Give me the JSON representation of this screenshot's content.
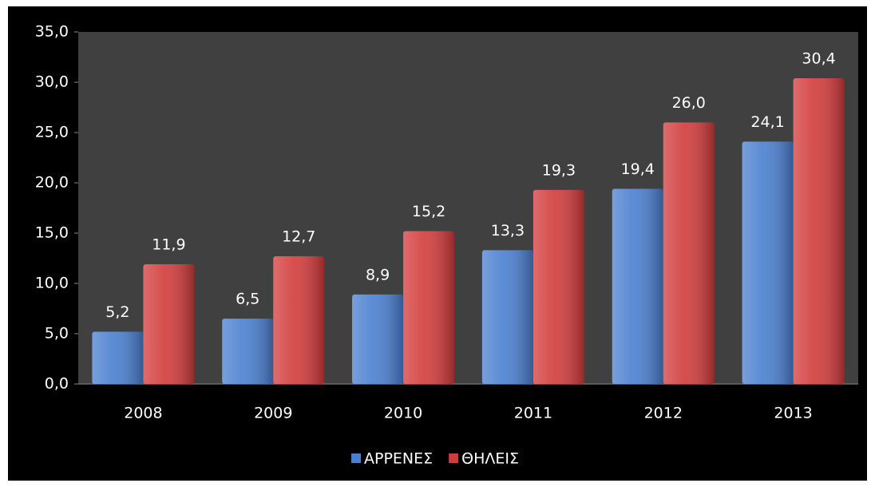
{
  "chart_data": {
    "type": "bar",
    "categories": [
      "2008",
      "2009",
      "2010",
      "2011",
      "2012",
      "2013"
    ],
    "series": [
      {
        "name": "ΑΡΡΕΝΕΣ",
        "color": "#4a7fd0",
        "values": [
          5.2,
          6.5,
          8.9,
          13.3,
          19.4,
          24.1
        ],
        "value_labels": [
          "5,2",
          "6,5",
          "8,9",
          "13,3",
          "19,4",
          "24,1"
        ]
      },
      {
        "name": "ΘΗΛΕΙΣ",
        "color": "#d23b3b",
        "values": [
          11.9,
          12.7,
          15.2,
          19.3,
          26.0,
          30.4
        ],
        "value_labels": [
          "11,9",
          "12,7",
          "15,2",
          "19,3",
          "26,0",
          "30,4"
        ]
      }
    ],
    "ylim": [
      0,
      35
    ],
    "yticks": [
      {
        "value": 0,
        "label": "0,0"
      },
      {
        "value": 5,
        "label": "5,0"
      },
      {
        "value": 10,
        "label": "10,0"
      },
      {
        "value": 15,
        "label": "15,0"
      },
      {
        "value": 20,
        "label": "20,0"
      },
      {
        "value": 25,
        "label": "25,0"
      },
      {
        "value": 30,
        "label": "30,0"
      },
      {
        "value": 35,
        "label": "35,0"
      }
    ],
    "grid": false,
    "legend": "bottom"
  }
}
